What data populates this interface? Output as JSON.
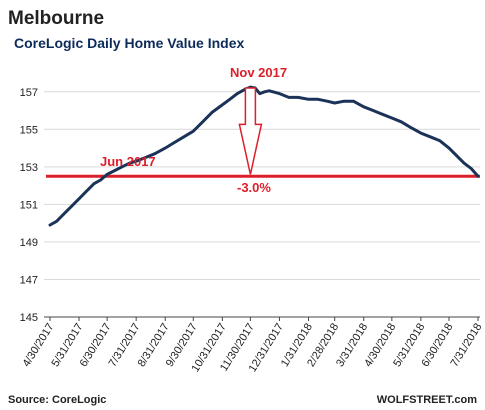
{
  "chart_data": {
    "type": "line",
    "title": "Melbourne",
    "subtitle": "CoreLogic Daily Home Value Index",
    "xlabel": "",
    "ylabel": "",
    "ylim": [
      145,
      158
    ],
    "y_ticks": [
      145,
      147,
      149,
      151,
      153,
      155,
      157
    ],
    "x_range": [
      "2017-04-30",
      "2018-07-31"
    ],
    "x_ticks": [
      "4/30/2017",
      "5/31/2017",
      "6/30/2017",
      "7/31/2017",
      "8/31/2017",
      "9/30/2017",
      "10/31/2017",
      "11/30/2017",
      "12/31/2017",
      "1/31/2018",
      "2/28/2018",
      "3/31/2018",
      "4/30/2018",
      "5/31/2018",
      "6/30/2018",
      "7/31/2018"
    ],
    "grid": "horizontal",
    "legend": "none",
    "series": [
      {
        "color": "#1b3358",
        "points": [
          [
            "2017-04-30",
            149.9
          ],
          [
            "2017-05-07",
            150.1
          ],
          [
            "2017-05-15",
            150.5
          ],
          [
            "2017-05-23",
            150.9
          ],
          [
            "2017-05-31",
            151.3
          ],
          [
            "2017-06-08",
            151.7
          ],
          [
            "2017-06-16",
            152.1
          ],
          [
            "2017-06-23",
            152.3
          ],
          [
            "2017-06-30",
            152.6
          ],
          [
            "2017-07-08",
            152.8
          ],
          [
            "2017-07-16",
            153.0
          ],
          [
            "2017-07-24",
            153.2
          ],
          [
            "2017-07-31",
            153.3
          ],
          [
            "2017-08-10",
            153.5
          ],
          [
            "2017-08-20",
            153.7
          ],
          [
            "2017-08-31",
            154.0
          ],
          [
            "2017-09-10",
            154.3
          ],
          [
            "2017-09-20",
            154.6
          ],
          [
            "2017-09-30",
            154.9
          ],
          [
            "2017-10-10",
            155.4
          ],
          [
            "2017-10-20",
            155.9
          ],
          [
            "2017-10-31",
            156.3
          ],
          [
            "2017-11-08",
            156.6
          ],
          [
            "2017-11-16",
            156.9
          ],
          [
            "2017-11-23",
            157.1
          ],
          [
            "2017-11-30",
            157.25
          ],
          [
            "2017-12-05",
            157.2
          ],
          [
            "2017-12-10",
            156.9
          ],
          [
            "2017-12-15",
            157.0
          ],
          [
            "2017-12-20",
            157.05
          ],
          [
            "2017-12-31",
            156.9
          ],
          [
            "2018-01-10",
            156.7
          ],
          [
            "2018-01-20",
            156.7
          ],
          [
            "2018-01-31",
            156.6
          ],
          [
            "2018-02-10",
            156.6
          ],
          [
            "2018-02-20",
            156.5
          ],
          [
            "2018-02-28",
            156.4
          ],
          [
            "2018-03-10",
            156.5
          ],
          [
            "2018-03-20",
            156.5
          ],
          [
            "2018-03-31",
            156.2
          ],
          [
            "2018-04-10",
            156.0
          ],
          [
            "2018-04-20",
            155.8
          ],
          [
            "2018-04-30",
            155.6
          ],
          [
            "2018-05-10",
            155.4
          ],
          [
            "2018-05-20",
            155.1
          ],
          [
            "2018-05-31",
            154.8
          ],
          [
            "2018-06-10",
            154.6
          ],
          [
            "2018-06-20",
            154.4
          ],
          [
            "2018-06-30",
            154.0
          ],
          [
            "2018-07-08",
            153.6
          ],
          [
            "2018-07-16",
            153.2
          ],
          [
            "2018-07-24",
            152.9
          ],
          [
            "2018-07-31",
            152.5
          ]
        ]
      }
    ],
    "reference_line": {
      "y": 152.5,
      "color": "#dd1f2a"
    },
    "annotations": [
      {
        "text": "Nov 2017",
        "color": "#dd1f2a"
      },
      {
        "text": "Jun 2017",
        "color": "#dd1f2a"
      },
      {
        "text": "-3.0%",
        "color": "#dd1f2a"
      }
    ],
    "arrow": {
      "from": [
        "2017-11-30",
        157.2
      ],
      "to": [
        "2017-11-30",
        152.6
      ],
      "color": "#dd1f2a"
    }
  },
  "footer": {
    "source": "Source: CoreLogic",
    "brand": "WOLFSTREET.com"
  }
}
